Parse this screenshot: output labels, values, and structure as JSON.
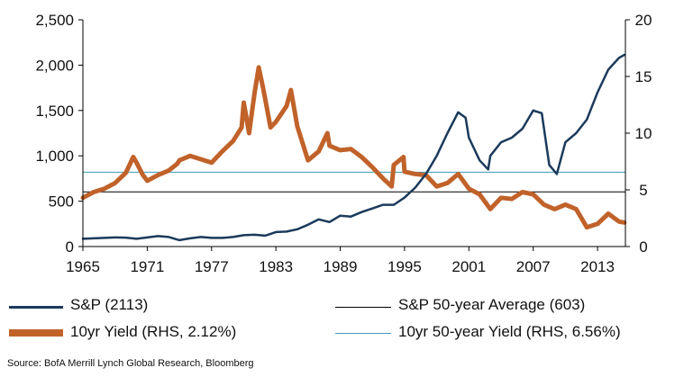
{
  "chart_data": {
    "type": "line",
    "title": "",
    "xlabel": "",
    "ylabel": "",
    "x_ticks": [
      "1965",
      "1971",
      "1977",
      "1983",
      "1989",
      "1995",
      "2001",
      "2007",
      "2013"
    ],
    "xlim": [
      1965,
      2015.6
    ],
    "y_left": {
      "lim": [
        0,
        2500
      ],
      "ticks": [
        "0",
        "500",
        "1,000",
        "1,500",
        "2,000",
        "2,500"
      ],
      "tick_values": [
        0,
        500,
        1000,
        1500,
        2000,
        2500
      ]
    },
    "y_right": {
      "lim": [
        0,
        20
      ],
      "ticks": [
        "0",
        "5",
        "10",
        "15",
        "20"
      ],
      "tick_values": [
        0,
        5,
        10,
        15,
        20
      ]
    },
    "grid": false,
    "legend_position": "bottom",
    "series": [
      {
        "name": "S&P (2113)",
        "axis": "left",
        "color": "#1b3a5c",
        "x": [
          1965,
          1966,
          1967,
          1968,
          1969,
          1970,
          1971,
          1972,
          1973,
          1974,
          1975,
          1976,
          1977,
          1978,
          1979,
          1980,
          1981,
          1982,
          1983,
          1984,
          1985,
          1986,
          1987,
          1988,
          1989,
          1990,
          1991,
          1992,
          1993,
          1994,
          1995,
          1996,
          1997,
          1998,
          1999,
          2000,
          2000.7,
          2001,
          2002,
          2002.8,
          2003,
          2004,
          2005,
          2006,
          2007,
          2007.8,
          2008.5,
          2009.2,
          2010,
          2011,
          2012,
          2013,
          2014,
          2015,
          2015.5
        ],
        "values": [
          85,
          90,
          95,
          100,
          98,
          85,
          100,
          115,
          105,
          70,
          90,
          105,
          95,
          95,
          105,
          125,
          130,
          120,
          160,
          165,
          190,
          240,
          300,
          270,
          340,
          330,
          380,
          420,
          460,
          460,
          540,
          650,
          800,
          1000,
          1250,
          1480,
          1420,
          1200,
          950,
          850,
          1000,
          1150,
          1200,
          1300,
          1500,
          1470,
          900,
          800,
          1150,
          1250,
          1400,
          1700,
          1950,
          2080,
          2113
        ]
      },
      {
        "name": "10yr Yield (RHS, 2.12%)",
        "axis": "right",
        "color": "#c0622a",
        "x": [
          1965,
          1966,
          1967,
          1968,
          1969,
          1969.7,
          1970,
          1970.6,
          1971,
          1972,
          1973,
          1973.8,
          1974,
          1975,
          1976,
          1977,
          1978,
          1979,
          1979.8,
          1980,
          1980.5,
          1981,
          1981.4,
          1981.8,
          1982,
          1982.5,
          1983,
          1984,
          1984.4,
          1985,
          1986,
          1987,
          1987.8,
          1988,
          1989,
          1990,
          1991,
          1992,
          1993,
          1993.8,
          1994,
          1994.9,
          1995,
          1996,
          1997,
          1998,
          1999,
          2000,
          2001,
          2002,
          2003,
          2004,
          2005,
          2006,
          2007,
          2008,
          2009,
          2010,
          2011,
          2012,
          2013,
          2014,
          2015,
          2015.5
        ],
        "values": [
          4.3,
          4.8,
          5.1,
          5.6,
          6.5,
          7.9,
          7.4,
          6.3,
          5.8,
          6.3,
          6.7,
          7.3,
          7.6,
          8.0,
          7.7,
          7.4,
          8.4,
          9.3,
          10.5,
          12.7,
          10.0,
          13.5,
          15.8,
          14.0,
          13.0,
          10.5,
          11.0,
          12.4,
          13.8,
          10.6,
          7.6,
          8.4,
          10.0,
          8.9,
          8.5,
          8.6,
          7.9,
          7.0,
          6.0,
          5.3,
          7.2,
          7.9,
          6.6,
          6.4,
          6.3,
          5.3,
          5.6,
          6.4,
          5.1,
          4.6,
          3.3,
          4.3,
          4.2,
          4.8,
          4.6,
          3.7,
          3.3,
          3.7,
          3.3,
          1.7,
          2.0,
          2.9,
          2.2,
          2.12
        ]
      },
      {
        "name": "S&P 50-year Average (603)",
        "axis": "left",
        "color": "#000000",
        "reference_value": 603
      },
      {
        "name": "10yr 50-year Yield (RHS, 6.56%)",
        "axis": "right",
        "color": "#3c9ab8",
        "reference_value": 6.56
      }
    ],
    "source": "Source: BofA Merrill Lynch Global Research, Bloomberg"
  }
}
